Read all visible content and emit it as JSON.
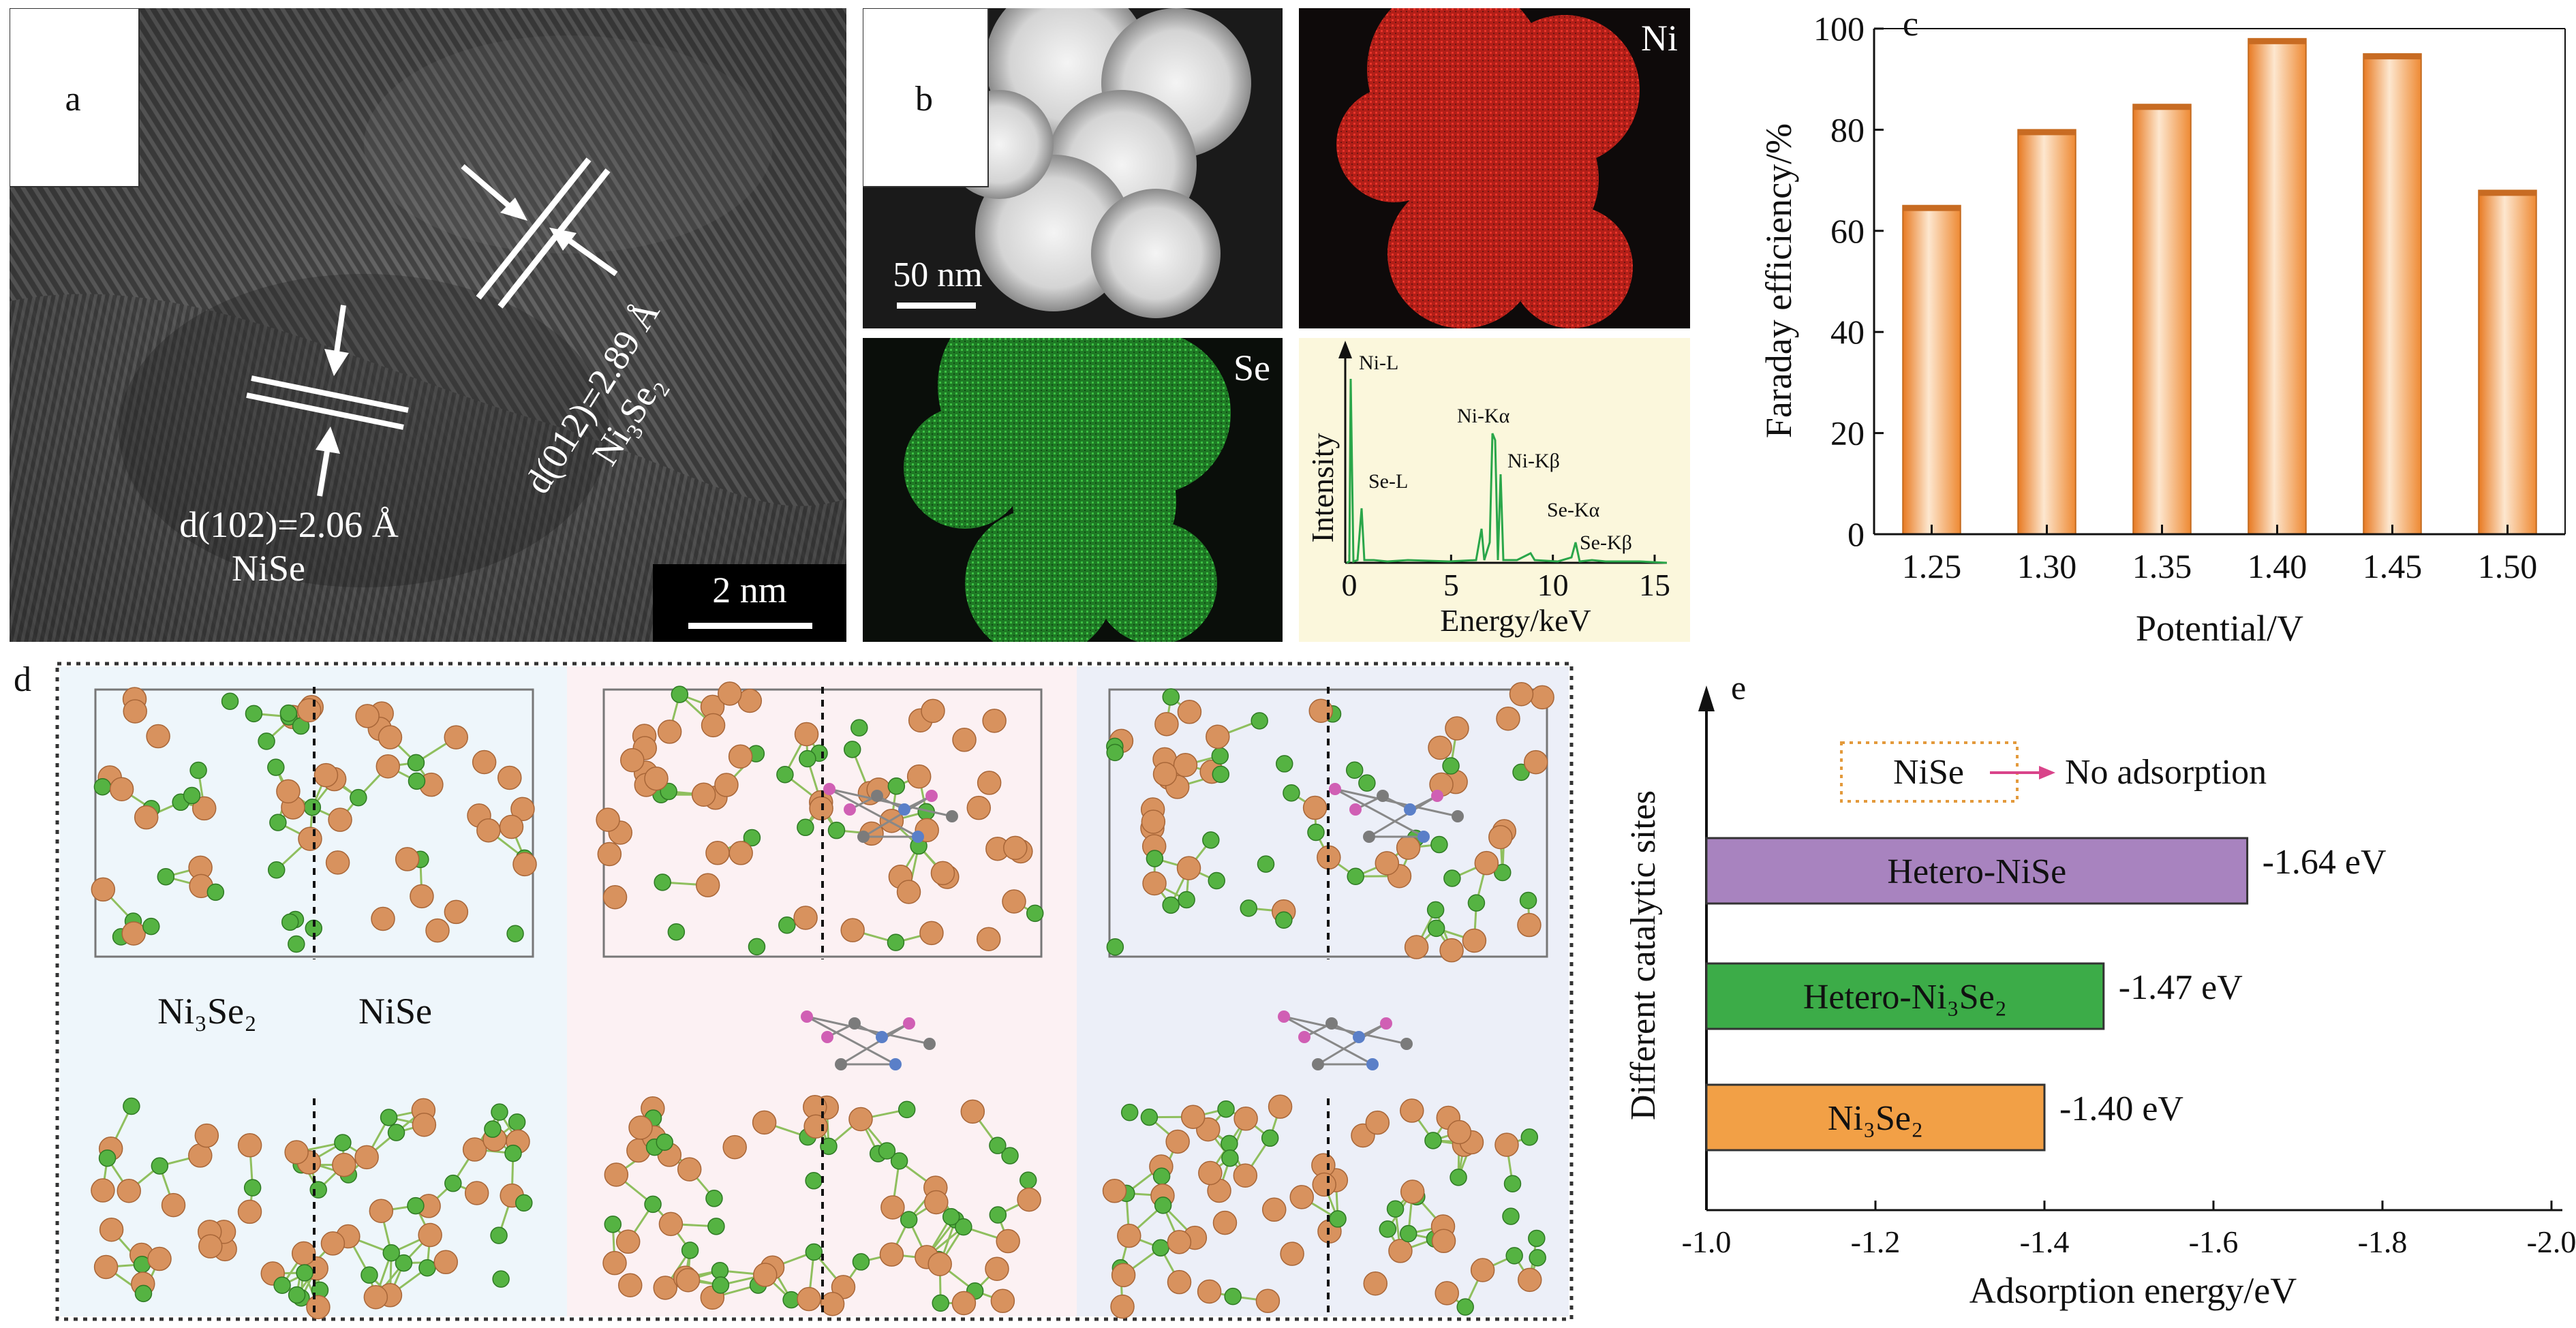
{
  "panel_a": {
    "label": "a",
    "lattice_1_text": "d(012)=2.89 Å",
    "lattice_1_phase": "Ni₃Se₂",
    "lattice_2_text": "d(102)=2.06 Å",
    "lattice_2_phase": "NiSe",
    "scale_bar": "2 nm"
  },
  "panel_b": {
    "label": "b",
    "scale_bar": "50 nm",
    "map_ni": "Ni",
    "map_se": "Se",
    "eds": {
      "ylabel": "Intensity",
      "xlabel": "Energy/keV",
      "ticks": [
        "0",
        "5",
        "10",
        "15"
      ],
      "peaks": [
        "Ni-L",
        "Se-L",
        "Ni-Kα",
        "Ni-Kβ",
        "Se-Kα",
        "Se-Kβ"
      ]
    },
    "colors": {
      "ni_map": "#d8241c",
      "se_map": "#2ea236",
      "eds_bg": "#fbf7dc"
    }
  },
  "panel_d": {
    "label": "d",
    "label_ni3se2": "Ni₃Se₂",
    "label_nise": "NiSe",
    "colors": {
      "ni_atom": "#d8925e",
      "se_atom": "#55b342",
      "bg_left": "#eef6fb",
      "bg_mid": "#fcf1f3",
      "bg_right": "#eceff8"
    }
  },
  "chart_data": [
    {
      "panel": "c",
      "type": "bar",
      "label": "c",
      "categories": [
        "1.25",
        "1.30",
        "1.35",
        "1.40",
        "1.45",
        "1.50"
      ],
      "values": [
        65,
        80,
        85,
        98,
        95,
        68
      ],
      "ylabel": "Faraday efficiency/%",
      "xlabel": "Potential/V",
      "ylim": [
        0,
        100
      ],
      "yticks": [
        "0",
        "20",
        "40",
        "60",
        "80",
        "100"
      ],
      "bar_color": "#f5963d"
    },
    {
      "panel": "e",
      "type": "bar",
      "orientation": "horizontal",
      "label": "e",
      "ylabel": "Different catalytic sites",
      "xlabel": "Adsorption energy/eV",
      "xlim": [
        -1.0,
        -2.0
      ],
      "xticks": [
        "-1.0",
        "-1.2",
        "-1.4",
        "-1.6",
        "-1.8",
        "-2.0"
      ],
      "bars": [
        {
          "name": "Hetero-NiSe",
          "value": -1.64,
          "value_label": "-1.64 eV",
          "color": "#a883bf"
        },
        {
          "name": "Hetero-Ni₃Se₂",
          "value": -1.47,
          "value_label": "-1.47 eV",
          "color": "#3cac48"
        },
        {
          "name": "Ni₃Se₂",
          "value": -1.4,
          "value_label": "-1.40 eV",
          "color": "#f2a046"
        }
      ],
      "annotation": {
        "site": "NiSe",
        "text": "No adsorption"
      }
    }
  ]
}
